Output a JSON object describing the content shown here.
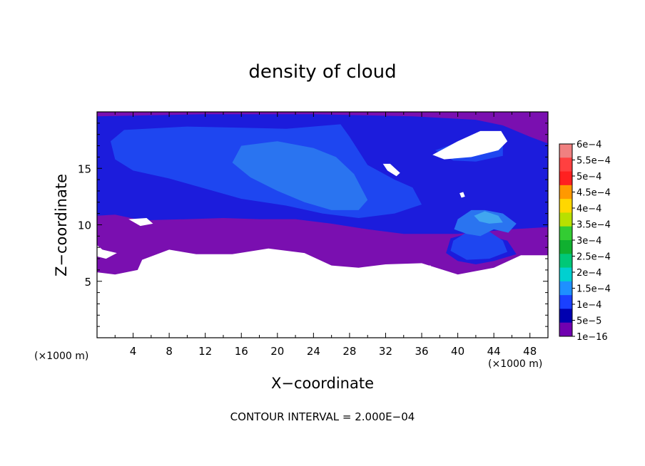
{
  "chart_data": {
    "type": "heatmap",
    "title": "density of cloud",
    "xlabel": "X−coordinate",
    "ylabel": "Z−coordinate",
    "x_unit_left": "(×1000 m)",
    "x_unit_right": "(×1000 m)",
    "xlim": [
      0,
      50
    ],
    "ylim": [
      0,
      20
    ],
    "xticks": [
      4,
      8,
      12,
      16,
      20,
      24,
      28,
      32,
      36,
      40,
      44,
      48
    ],
    "yticks": [
      5,
      10,
      15
    ],
    "footer": "CONTOUR INTERVAL = 2.000E−04",
    "colorbar": {
      "labels": [
        "6e−4",
        "5.5e−4",
        "5e−4",
        "4.5e−4",
        "4e−4",
        "3.5e−4",
        "3e−4",
        "2.5e−4",
        "2e−4",
        "1.5e−4",
        "1e−4",
        "5e−5",
        "1e−16"
      ],
      "colors": [
        "#f08080",
        "#ff4040",
        "#ff2020",
        "#ff9900",
        "#ffd700",
        "#b8e000",
        "#33cc33",
        "#10b030",
        "#00c878",
        "#00d0d0",
        "#1e90ff",
        "#1a40ff",
        "#0000b0",
        "#7000b0"
      ]
    },
    "field_colors": {
      "outer": "#7a0fb0",
      "mid": "#1c1cdc",
      "inner": "#1e46f0",
      "core": "#2a74f0",
      "peak": "#40a6f0"
    },
    "regions": [
      {
        "level": "outer",
        "points": [
          [
            0,
            20
          ],
          [
            50,
            20
          ],
          [
            50,
            7.3
          ],
          [
            47,
            7.3
          ],
          [
            44,
            6.2
          ],
          [
            40,
            5.6
          ],
          [
            36,
            6.6
          ],
          [
            32,
            6.5
          ],
          [
            29,
            6.2
          ],
          [
            26,
            6.4
          ],
          [
            23,
            7.5
          ],
          [
            19,
            7.9
          ],
          [
            15,
            7.4
          ],
          [
            11,
            7.4
          ],
          [
            8,
            7.8
          ],
          [
            5,
            6.9
          ],
          [
            4.5,
            6.0
          ],
          [
            2,
            5.6
          ],
          [
            0,
            5.8
          ],
          [
            0,
            7.2
          ],
          [
            1,
            7.0
          ],
          [
            2.2,
            7.5
          ],
          [
            0.6,
            7.8
          ],
          [
            0,
            8.2
          ]
        ]
      },
      {
        "level": "mid",
        "points": [
          [
            0,
            19.6
          ],
          [
            12,
            19.8
          ],
          [
            24,
            19.8
          ],
          [
            35,
            19.6
          ],
          [
            42,
            19.3
          ],
          [
            45,
            18.8
          ],
          [
            48,
            17.8
          ],
          [
            50,
            17.2
          ],
          [
            50,
            9.8
          ],
          [
            46,
            9.6
          ],
          [
            40,
            9.2
          ],
          [
            34,
            9.2
          ],
          [
            30,
            9.6
          ],
          [
            26,
            10.1
          ],
          [
            22,
            10.5
          ],
          [
            18,
            10.5
          ],
          [
            14,
            10.6
          ],
          [
            10,
            10.5
          ],
          [
            5,
            10.4
          ],
          [
            2,
            10.9
          ],
          [
            0,
            10.8
          ]
        ]
      },
      {
        "level": "mid",
        "points": [
          [
            39.2,
            8.8
          ],
          [
            41,
            9.2
          ],
          [
            43.5,
            9.0
          ],
          [
            45.5,
            8.6
          ],
          [
            46.5,
            7.4
          ],
          [
            44,
            6.8
          ],
          [
            42,
            6.5
          ],
          [
            40,
            6.8
          ],
          [
            38.7,
            7.5
          ]
        ]
      },
      {
        "level": "inner",
        "points": [
          [
            3,
            18.4
          ],
          [
            10,
            18.7
          ],
          [
            16,
            18.6
          ],
          [
            21,
            18.5
          ],
          [
            27,
            18.9
          ],
          [
            28,
            17.8
          ],
          [
            30,
            15.3
          ],
          [
            33,
            14.0
          ],
          [
            35,
            13.3
          ],
          [
            36,
            11.8
          ],
          [
            33,
            11.0
          ],
          [
            29,
            10.6
          ],
          [
            25,
            11.0
          ],
          [
            21,
            11.7
          ],
          [
            16,
            12.3
          ],
          [
            12,
            13.2
          ],
          [
            8,
            14.1
          ],
          [
            4,
            14.8
          ],
          [
            2,
            15.8
          ],
          [
            1.5,
            17.4
          ]
        ]
      },
      {
        "level": "inner",
        "points": [
          [
            39.5,
            8.6
          ],
          [
            41.5,
            9.6
          ],
          [
            43.5,
            9.4
          ],
          [
            45,
            8.6
          ],
          [
            45.5,
            7.6
          ],
          [
            43.5,
            7.0
          ],
          [
            41,
            6.9
          ],
          [
            39.2,
            7.7
          ]
        ]
      },
      {
        "level": "inner",
        "points": [
          [
            37.5,
            16.6
          ],
          [
            40,
            17.3
          ],
          [
            43,
            17.6
          ],
          [
            45,
            17.3
          ],
          [
            45,
            16.1
          ],
          [
            42,
            15.6
          ],
          [
            39.5,
            15.7
          ]
        ]
      },
      {
        "level": "core",
        "points": [
          [
            16,
            17.0
          ],
          [
            20,
            17.4
          ],
          [
            24,
            16.8
          ],
          [
            26.5,
            16.0
          ],
          [
            28.5,
            14.5
          ],
          [
            30,
            12.2
          ],
          [
            29,
            11.3
          ],
          [
            26,
            11.3
          ],
          [
            23,
            12.0
          ],
          [
            20,
            13.0
          ],
          [
            17,
            14.2
          ],
          [
            15,
            15.5
          ]
        ]
      },
      {
        "level": "core",
        "points": [
          [
            40,
            10.5
          ],
          [
            41.5,
            11.3
          ],
          [
            43,
            11.3
          ],
          [
            45,
            11.0
          ],
          [
            46.5,
            10.1
          ],
          [
            45.6,
            9.3
          ],
          [
            44,
            9.6
          ],
          [
            42.5,
            9.0
          ],
          [
            41,
            9.2
          ],
          [
            39.6,
            9.6
          ]
        ]
      },
      {
        "level": "peak",
        "points": [
          [
            41.8,
            10.8
          ],
          [
            43,
            11.2
          ],
          [
            44.5,
            10.8
          ],
          [
            45,
            10.2
          ],
          [
            43.5,
            10.1
          ],
          [
            42.4,
            10.3
          ]
        ]
      }
    ],
    "holes": [
      {
        "points": [
          [
            37.2,
            16.2
          ],
          [
            40,
            17.4
          ],
          [
            42.5,
            18.3
          ],
          [
            44.8,
            18.3
          ],
          [
            45.5,
            17.4
          ],
          [
            44.5,
            16.6
          ],
          [
            41.5,
            16.0
          ],
          [
            38.5,
            15.8
          ]
        ]
      },
      {
        "points": [
          [
            31.7,
            15.4
          ],
          [
            32.5,
            15.4
          ],
          [
            33.6,
            14.6
          ],
          [
            33.2,
            14.3
          ],
          [
            32.2,
            14.8
          ]
        ]
      },
      {
        "points": [
          [
            40.2,
            12.8
          ],
          [
            40.6,
            12.9
          ],
          [
            40.8,
            12.5
          ],
          [
            40.4,
            12.4
          ]
        ]
      },
      {
        "points": [
          [
            3.5,
            10.5
          ],
          [
            5.5,
            10.6
          ],
          [
            6.2,
            10.1
          ],
          [
            4.8,
            9.9
          ]
        ]
      },
      {
        "points": [
          [
            16.2,
            6.1
          ],
          [
            16.8,
            6.2
          ],
          [
            16.9,
            5.7
          ],
          [
            16.3,
            5.6
          ]
        ]
      },
      {
        "points": [
          [
            36.3,
            6.4
          ],
          [
            37,
            6.4
          ],
          [
            37,
            5.9
          ],
          [
            36.4,
            5.9
          ]
        ]
      }
    ]
  }
}
